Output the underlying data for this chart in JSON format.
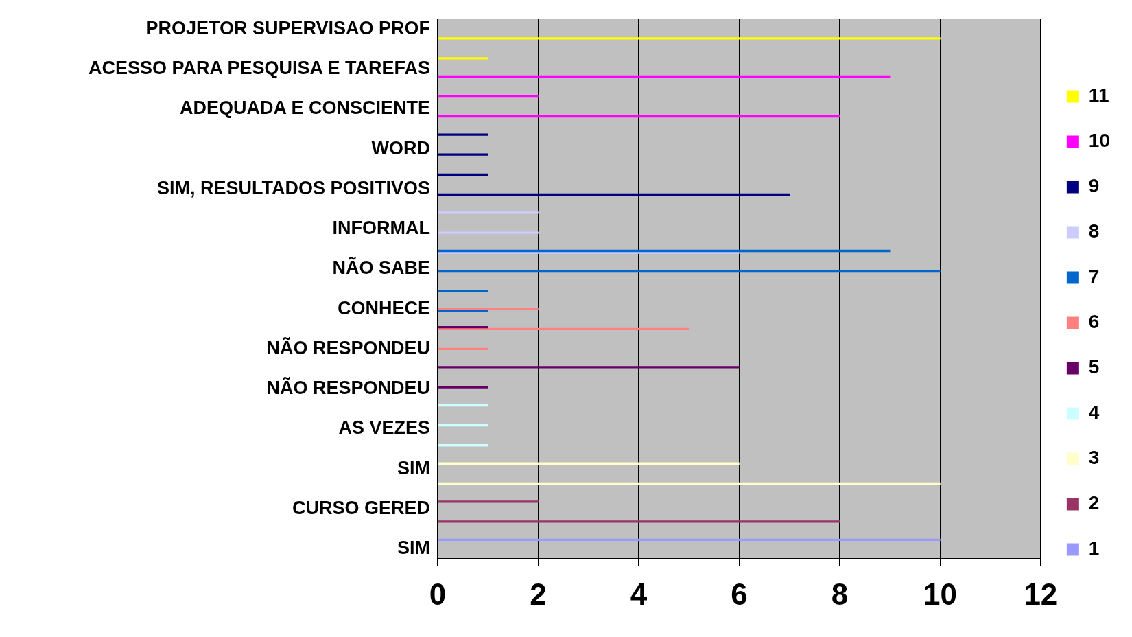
{
  "chart_data": {
    "type": "bar",
    "orientation": "horizontal",
    "categories": [
      "PROJETOR SUPERVISAO PROF",
      null,
      "ACESSO PARA PESQUISA E TAREFAS",
      null,
      "ADEQUADA E CONSCIENTE",
      null,
      "WORD",
      null,
      "SIM, RESULTADOS POSITIVOS",
      null,
      "INFORMAL",
      null,
      "NÃO SABE",
      null,
      "CONHECE",
      null,
      "NÃO RESPONDEU",
      null,
      "NÃO RESPONDEU",
      null,
      "AS VEZES",
      null,
      "SIM",
      null,
      "CURSO GERED",
      null,
      "SIM"
    ],
    "series": [
      {
        "name": "1",
        "color": "#9999ff",
        "values": [
          null,
          null,
          null,
          null,
          null,
          null,
          null,
          null,
          null,
          null,
          null,
          null,
          null,
          null,
          null,
          null,
          null,
          null,
          null,
          null,
          null,
          null,
          null,
          null,
          null,
          null,
          10
        ]
      },
      {
        "name": "2",
        "color": "#993366",
        "values": [
          null,
          null,
          null,
          null,
          null,
          null,
          null,
          null,
          null,
          null,
          null,
          null,
          null,
          null,
          null,
          null,
          null,
          null,
          null,
          null,
          null,
          null,
          null,
          null,
          2,
          8,
          null
        ]
      },
      {
        "name": "3",
        "color": "#ffffcc",
        "values": [
          null,
          null,
          null,
          null,
          null,
          null,
          null,
          null,
          null,
          null,
          null,
          null,
          null,
          null,
          null,
          null,
          null,
          null,
          null,
          null,
          null,
          null,
          6,
          10,
          null,
          null,
          null
        ]
      },
      {
        "name": "4",
        "color": "#ccffff",
        "values": [
          null,
          null,
          null,
          null,
          null,
          null,
          null,
          null,
          null,
          null,
          null,
          null,
          null,
          null,
          null,
          null,
          null,
          null,
          null,
          1,
          1,
          1,
          null,
          null,
          null,
          null,
          null
        ]
      },
      {
        "name": "5",
        "color": "#660066",
        "values": [
          null,
          null,
          null,
          null,
          null,
          null,
          null,
          null,
          null,
          null,
          null,
          null,
          null,
          null,
          null,
          1,
          null,
          6,
          1,
          null,
          null,
          null,
          null,
          null,
          null,
          null,
          null
        ]
      },
      {
        "name": "6",
        "color": "#ff8080",
        "values": [
          null,
          null,
          null,
          null,
          null,
          null,
          null,
          null,
          null,
          null,
          null,
          null,
          null,
          null,
          2,
          5,
          1,
          null,
          null,
          null,
          null,
          null,
          null,
          null,
          null,
          null,
          null
        ]
      },
      {
        "name": "7",
        "color": "#0066cc",
        "values": [
          null,
          null,
          null,
          null,
          null,
          null,
          null,
          null,
          null,
          null,
          null,
          9,
          10,
          1,
          1,
          null,
          null,
          null,
          null,
          null,
          null,
          null,
          null,
          null,
          null,
          null,
          null
        ]
      },
      {
        "name": "8",
        "color": "#ccccff",
        "values": [
          null,
          null,
          null,
          null,
          null,
          null,
          null,
          null,
          null,
          2,
          2,
          6,
          null,
          null,
          null,
          null,
          null,
          null,
          null,
          null,
          null,
          null,
          null,
          null,
          null,
          null,
          null
        ]
      },
      {
        "name": "9",
        "color": "#000080",
        "values": [
          null,
          null,
          null,
          null,
          null,
          1,
          1,
          1,
          7,
          null,
          null,
          null,
          null,
          null,
          null,
          null,
          null,
          null,
          null,
          null,
          null,
          null,
          null,
          null,
          null,
          null,
          null
        ]
      },
      {
        "name": "10",
        "color": "#ff00ff",
        "values": [
          null,
          null,
          9,
          2,
          8,
          null,
          null,
          null,
          null,
          null,
          null,
          null,
          null,
          null,
          null,
          null,
          null,
          null,
          null,
          null,
          null,
          null,
          null,
          null,
          null,
          null,
          null
        ]
      },
      {
        "name": "11",
        "color": "#ffff00",
        "values": [
          10,
          1,
          null,
          null,
          null,
          null,
          null,
          null,
          null,
          null,
          null,
          null,
          null,
          null,
          null,
          null,
          null,
          null,
          null,
          null,
          null,
          null,
          null,
          null,
          null,
          null,
          null
        ]
      }
    ],
    "xlim": [
      0,
      12
    ],
    "xticks": [
      0,
      2,
      4,
      6,
      8,
      10,
      12
    ],
    "grid": "x",
    "legend": "right"
  }
}
